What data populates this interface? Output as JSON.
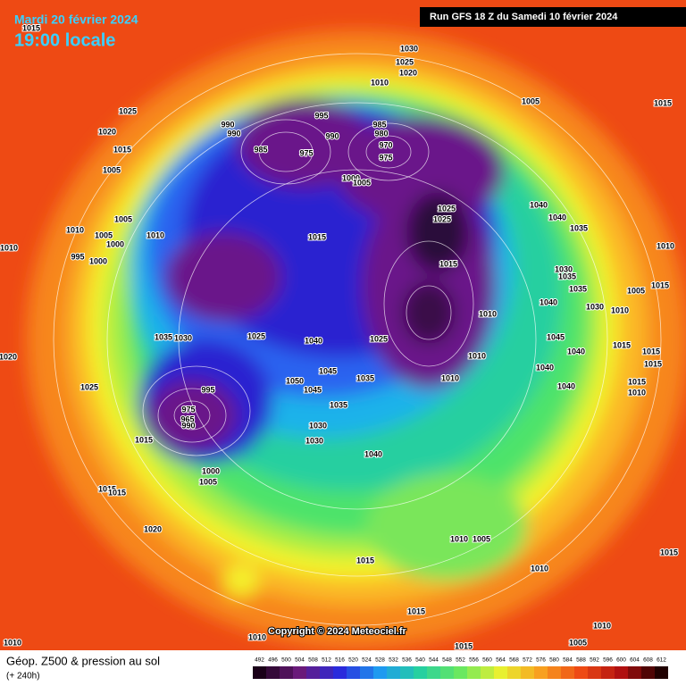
{
  "header": {
    "date": "Mardi 20 février 2024",
    "time": "19:00 locale",
    "run": "Run GFS 18 Z du Samedi 10 février 2024"
  },
  "copyright": "Copyright © 2024 Meteociel.fr",
  "footer": {
    "title": "Géop. Z500 & pression au sol",
    "lead": "(+ 240h)"
  },
  "legend": {
    "ticks": [
      492,
      496,
      500,
      504,
      508,
      512,
      516,
      520,
      524,
      528,
      532,
      536,
      540,
      544,
      548,
      552,
      556,
      560,
      564,
      568,
      572,
      576,
      580,
      584,
      588,
      592,
      596,
      600,
      604,
      608,
      612
    ]
  },
  "isobar_labels": [
    1015,
    1030,
    1025,
    1020,
    1010,
    1025,
    1020,
    1015,
    1005,
    995,
    985,
    980,
    990,
    990,
    990,
    970,
    975,
    985,
    975,
    1000,
    1005,
    1005,
    1015,
    1040,
    1040,
    1035,
    1010,
    1005,
    1010,
    1005,
    1000,
    1010,
    1015,
    1025,
    1025,
    1015,
    1010,
    995,
    1000,
    1010,
    1030,
    1035,
    1005,
    1015,
    1035,
    1040,
    1030,
    1010,
    1035,
    1030,
    1025,
    1040,
    1025,
    1020,
    1015,
    1045,
    1040,
    1015,
    1015,
    1045,
    1050,
    1045,
    1035,
    1010,
    1010,
    1040,
    1040,
    1015,
    1010,
    1025,
    995,
    975,
    965,
    990,
    1035,
    1030,
    1030,
    1015,
    1040,
    1000,
    1005,
    1015,
    1015,
    1020,
    1010,
    1005,
    1015,
    1010,
    1015,
    1015,
    1010,
    1010,
    1010,
    1015,
    1005
  ]
}
